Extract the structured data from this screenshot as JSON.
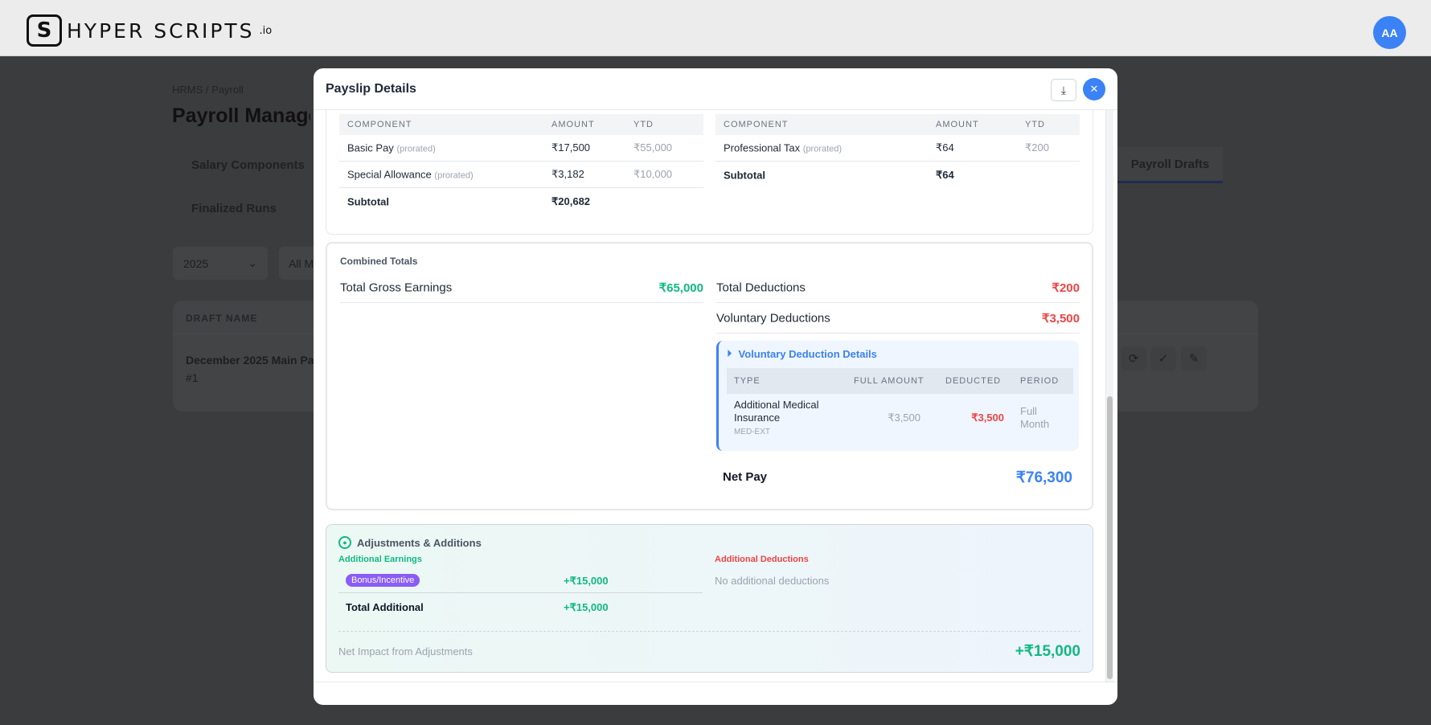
{
  "topbar": {
    "logo_text": "HYPER SCRIPTS",
    "logo_suffix": ".io",
    "logo_mark": "S",
    "avatar": "AA"
  },
  "background": {
    "breadcrumb": [
      "HRMS",
      "/",
      "Payroll"
    ],
    "page_title": "Payroll Management",
    "tabs": [
      "Salary Components",
      "Finalized Runs",
      "Payroll Drafts"
    ],
    "filters": {
      "year": "2025",
      "month": "All M"
    },
    "table": {
      "header": "DRAFT NAME",
      "row": {
        "name": "December 2025 Main Pa",
        "id": "#1"
      }
    }
  },
  "modal": {
    "title": "Payslip Details",
    "earnings": {
      "headers": [
        "COMPONENT",
        "AMOUNT",
        "YTD"
      ],
      "rows": [
        {
          "name": "Basic Pay",
          "tag": "(prorated)",
          "amount": "₹17,500",
          "ytd": "₹55,000"
        },
        {
          "name": "Special Allowance",
          "tag": "(prorated)",
          "amount": "₹3,182",
          "ytd": "₹10,000"
        }
      ],
      "subtotal_label": "Subtotal",
      "subtotal": "₹20,682"
    },
    "deductions": {
      "headers": [
        "COMPONENT",
        "AMOUNT",
        "YTD"
      ],
      "rows": [
        {
          "name": "Professional Tax",
          "tag": "(prorated)",
          "amount": "₹64",
          "ytd": "₹200"
        }
      ],
      "subtotal_label": "Subtotal",
      "subtotal": "₹64"
    },
    "combined": {
      "title": "Combined Totals",
      "gross_label": "Total Gross Earnings",
      "gross": "₹65,000",
      "deductions_label": "Total Deductions",
      "deductions": "₹200",
      "voluntary_label": "Voluntary Deductions",
      "voluntary": "₹3,500",
      "vd": {
        "title": "Voluntary Deduction Details",
        "headers": [
          "TYPE",
          "FULL AMOUNT",
          "DEDUCTED",
          "PERIOD"
        ],
        "row": {
          "type": "Additional Medical Insurance",
          "code": "MED-EXT",
          "full": "₹3,500",
          "deducted": "₹3,500",
          "period": "Full Month"
        }
      },
      "net_label": "Net Pay",
      "net": "₹76,300"
    },
    "adjustments": {
      "title": "Adjustments & Additions",
      "earnings_title": "Additional Earnings",
      "badge": "Bonus/Incentive",
      "badge_amount": "+₹15,000",
      "total_label": "Total Additional",
      "total": "+₹15,000",
      "deductions_title": "Additional Deductions",
      "no_deductions": "No additional deductions",
      "net_label": "Net Impact from Adjustments",
      "net": "+₹15,000"
    }
  }
}
